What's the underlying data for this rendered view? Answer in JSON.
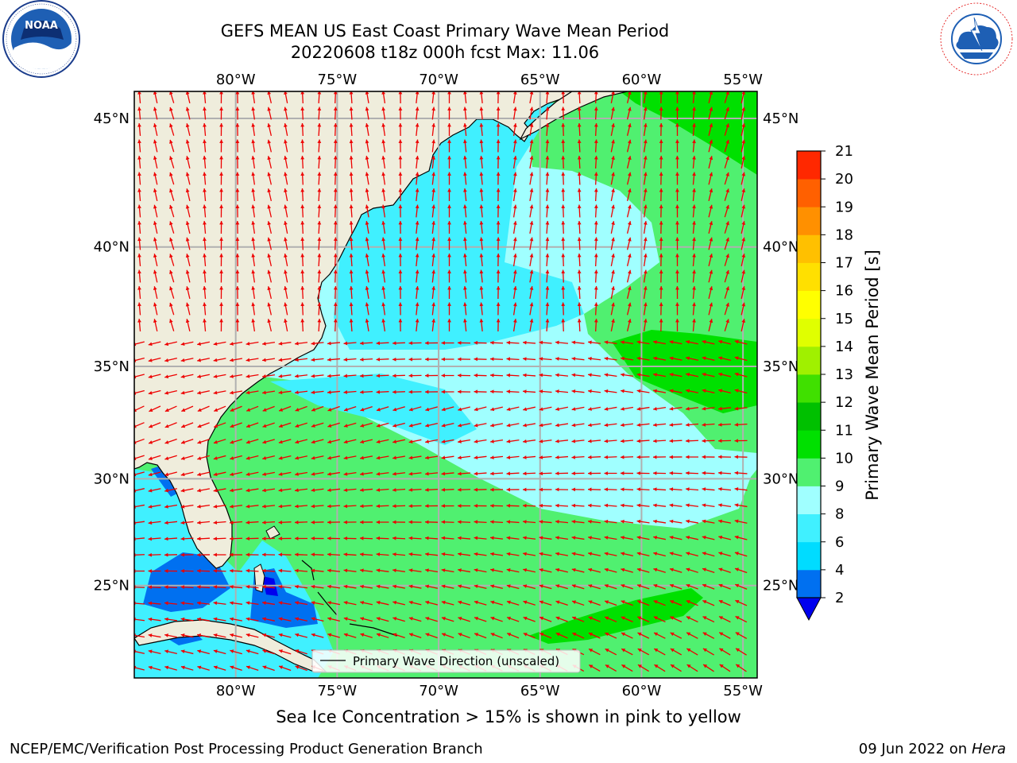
{
  "title": {
    "line1": "GEFS MEAN US East Coast Primary Wave Mean Period",
    "line2": "20220608 t18z 000h fcst   Max: 11.06"
  },
  "axes": {
    "lon_labels": [
      "80°W",
      "75°W",
      "70°W",
      "65°W",
      "60°W",
      "55°W"
    ],
    "lon_values": [
      -80,
      -75,
      -70,
      -65,
      -60,
      -55
    ],
    "lat_labels": [
      "45°N",
      "40°N",
      "35°N",
      "30°N",
      "25°N"
    ],
    "lat_values": [
      45,
      40,
      35,
      30,
      25
    ],
    "lon_range": [
      -85,
      -54.3
    ],
    "lat_range": [
      20.5,
      46
    ]
  },
  "colorbar": {
    "label": "Primary Wave Mean Period [s]",
    "ticks": [
      "21",
      "20",
      "19",
      "18",
      "17",
      "16",
      "15",
      "14",
      "13",
      "12",
      "11",
      "10",
      "9",
      "8",
      "6",
      "4",
      "2"
    ],
    "levels": [
      2,
      4,
      6,
      8,
      9,
      10,
      11,
      12,
      13,
      14,
      15,
      16,
      17,
      18,
      19,
      20,
      21
    ],
    "colors": [
      "#0070f0",
      "#00dcff",
      "#40f0ff",
      "#a0ffff",
      "#50f070",
      "#00e000",
      "#00c000",
      "#40e000",
      "#a0f000",
      "#e0ff00",
      "#ffff00",
      "#ffe000",
      "#ffc000",
      "#ff9000",
      "#ff6000",
      "#ff2800"
    ],
    "under_color": "#0000ee"
  },
  "legend": {
    "label": "Primary Wave Direction (unscaled)"
  },
  "footer": {
    "note": "Sea Ice Concentration > 15% is shown in pink to yellow",
    "left": "NCEP/EMC/Verification Post Processing Product Generation Branch",
    "date": "09 Jun 2022 on",
    "machine": "Hera"
  },
  "logos": {
    "left": "NOAA",
    "left_ring": "NATIONAL OCEANIC AND ATMOSPHERIC ADMINISTRATION · U.S. DEPARTMENT OF COMMERCE",
    "right_ring": "NATIONAL WEATHER SERVICE"
  },
  "colors": {
    "land": "#efeddc",
    "arrow": "#ee0000",
    "grid": "#b0b0b0",
    "coast": "#000000"
  }
}
